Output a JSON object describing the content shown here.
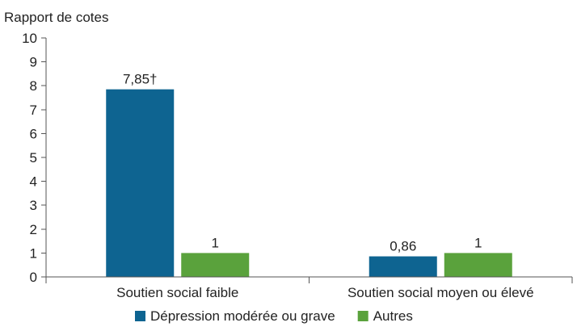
{
  "chart_data": {
    "type": "bar",
    "ylabel": "Rapport de cotes",
    "xlabel": "",
    "title": "",
    "ylim": [
      0,
      10
    ],
    "yticks": [
      0,
      1,
      2,
      3,
      4,
      5,
      6,
      7,
      8,
      9,
      10
    ],
    "categories": [
      "Soutien social faible",
      "Soutien social moyen ou élevé"
    ],
    "series": [
      {
        "name": "Dépression modérée ou grave",
        "color": "#0e6491",
        "values": [
          7.85,
          0.86
        ],
        "labels": [
          "7,85†",
          "0,86"
        ]
      },
      {
        "name": "Autres",
        "color": "#5aa23c",
        "values": [
          1,
          1
        ],
        "labels": [
          "1",
          "1"
        ]
      }
    ],
    "grid": false,
    "legend_position": "bottom"
  }
}
